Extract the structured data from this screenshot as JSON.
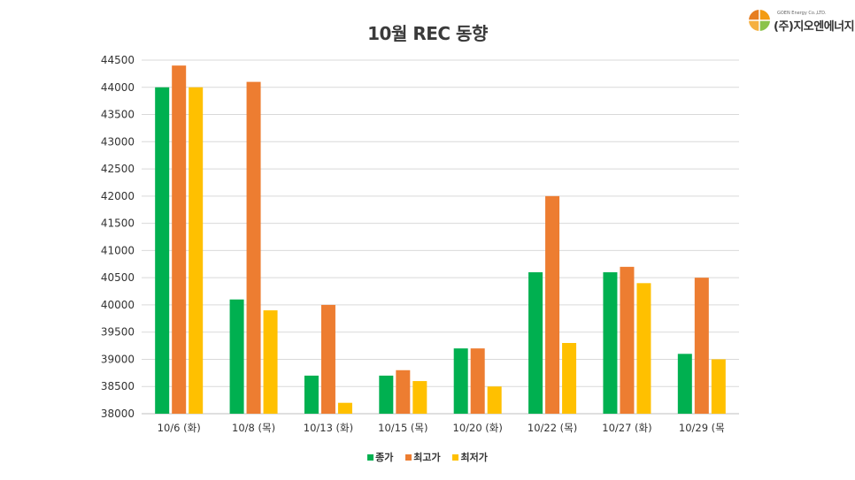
{
  "header": {
    "title": "10월 REC 동향"
  },
  "logo": {
    "subtitle": "GOEN Energy Co.,LTD.",
    "name": "(주)지오엔에너지"
  },
  "colors": {
    "종가": "#00b050",
    "최고가": "#ed7d31",
    "최저가": "#ffc000",
    "grid": "#d9d9d9"
  },
  "chart_data": {
    "type": "bar",
    "title": "10월 REC 동향",
    "categories": [
      "10/6 (화)",
      "10/8 (목)",
      "10/13 (화)",
      "10/15 (목)",
      "10/20 (화)",
      "10/22 (목)",
      "10/27 (화)",
      "10/29 (목"
    ],
    "series": [
      {
        "name": "종가",
        "values": [
          44000,
          40100,
          38700,
          38700,
          39200,
          40600,
          40600,
          39100
        ]
      },
      {
        "name": "최고가",
        "values": [
          44400,
          44100,
          40000,
          38800,
          39200,
          42000,
          40700,
          40500
        ]
      },
      {
        "name": "최저가",
        "values": [
          44000,
          39900,
          38200,
          38600,
          38500,
          39300,
          40400,
          39000
        ]
      }
    ],
    "ylim": [
      38000,
      44500
    ],
    "yticks": [
      38000,
      38500,
      39000,
      39500,
      40000,
      40500,
      41000,
      41500,
      42000,
      42500,
      43000,
      43500,
      44000,
      44500
    ],
    "grid": true,
    "legend": "bottom"
  }
}
